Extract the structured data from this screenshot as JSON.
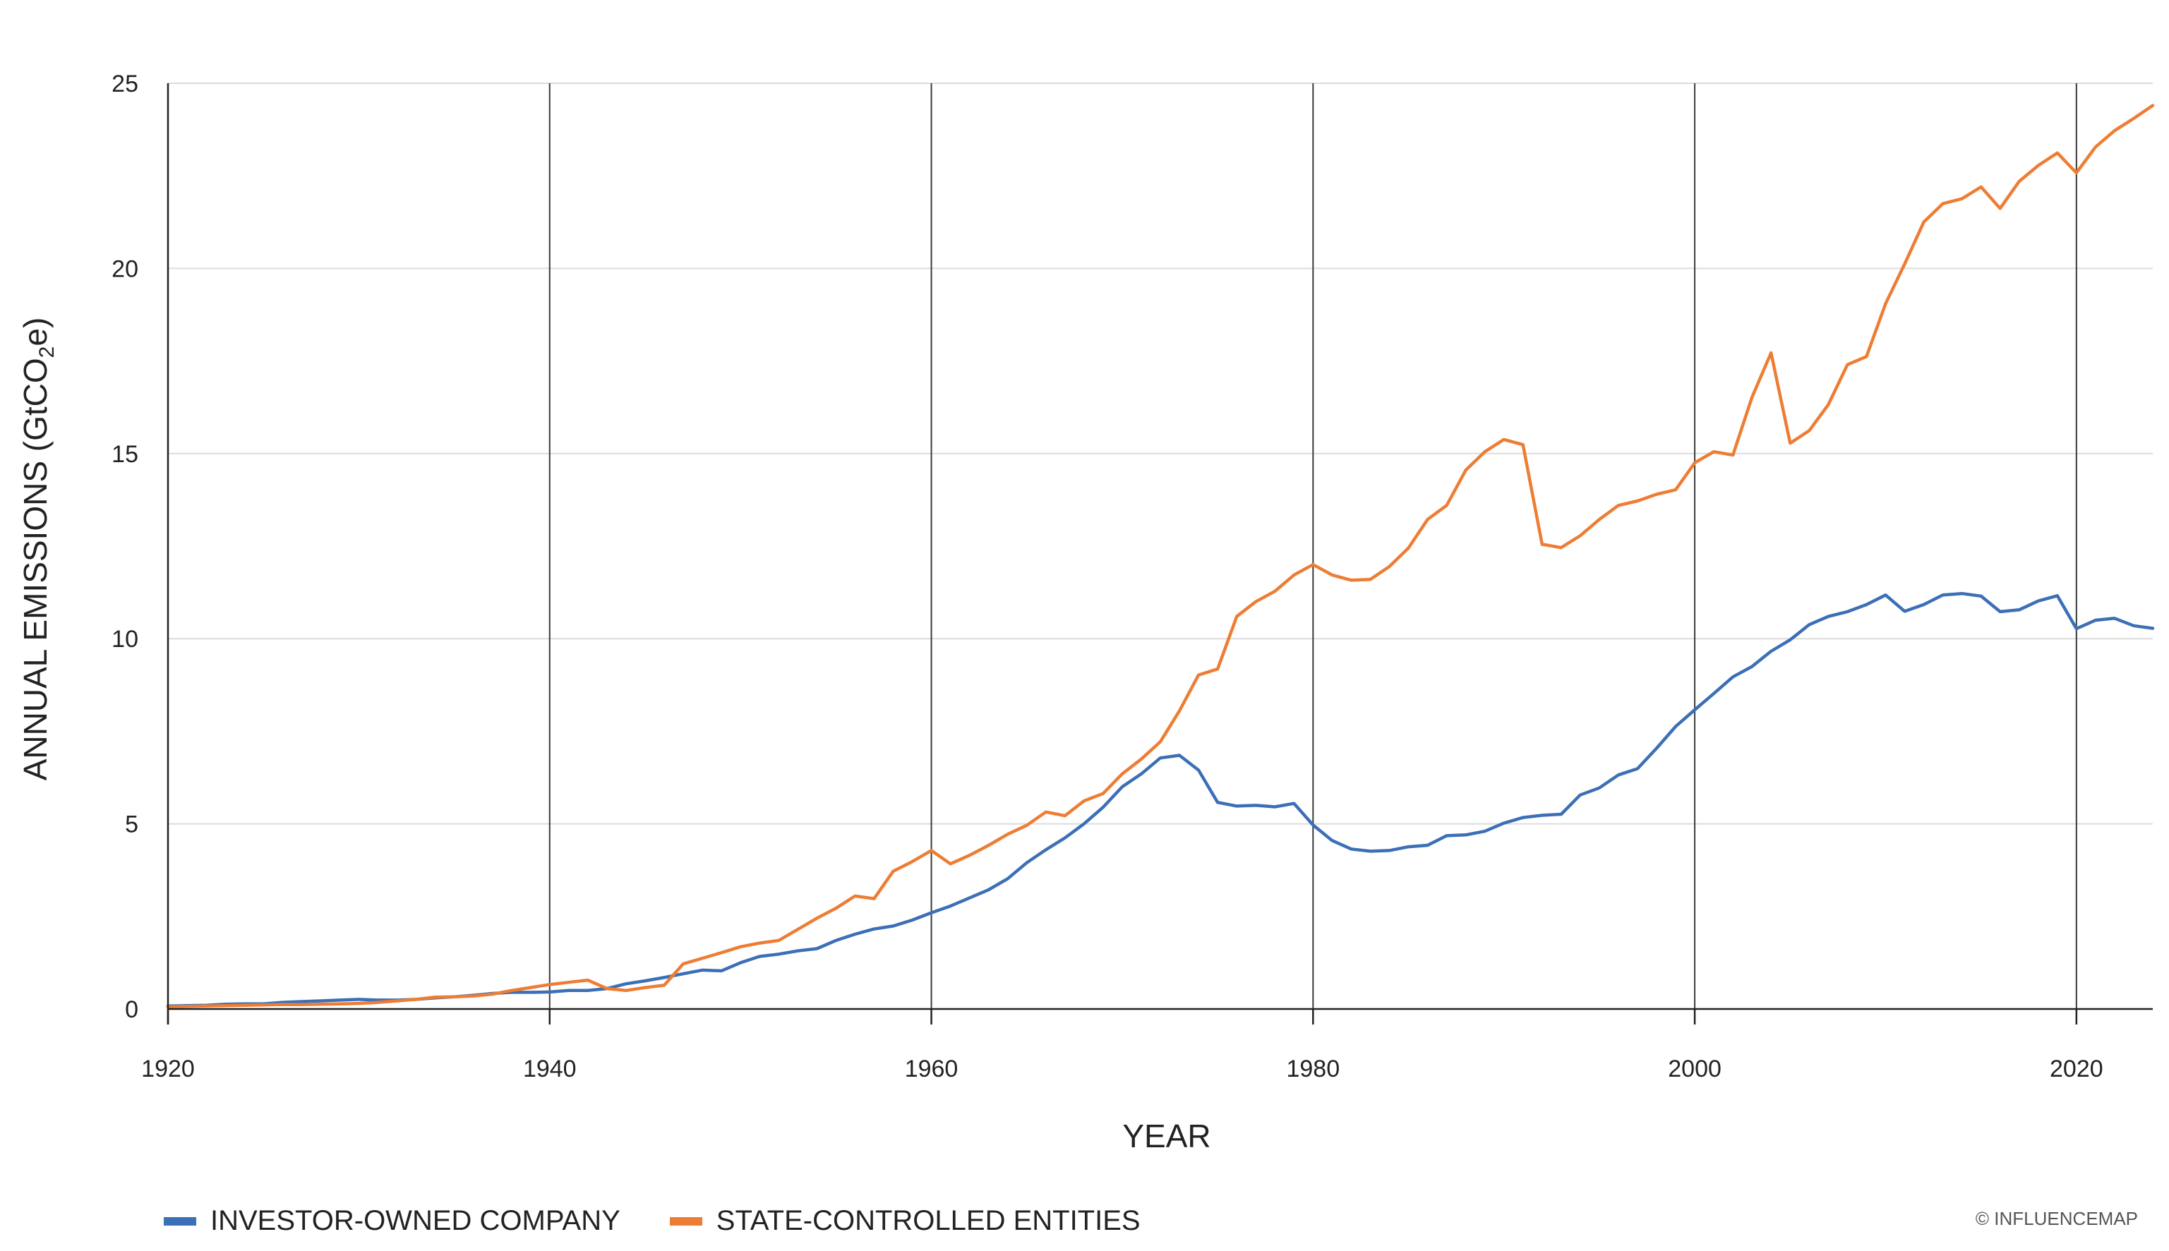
{
  "chart_data": {
    "type": "line",
    "title": "",
    "xlabel": "YEAR",
    "ylabel_prefix": "ANNUAL EMISSIONS (GtCO",
    "ylabel_sub": "2",
    "ylabel_suffix": "e)",
    "xlim": [
      1920,
      2024
    ],
    "ylim": [
      0,
      25
    ],
    "x_ticks": [
      1920,
      1940,
      1960,
      1980,
      2000,
      2020
    ],
    "y_ticks": [
      0,
      5,
      10,
      15,
      20,
      25
    ],
    "grid": "horizontal light gray, vertical dark at x ticks",
    "legend_position": "bottom-left",
    "series": [
      {
        "name": "INVESTOR-OWNED COMPANY",
        "color": "#3b6fb6",
        "x": [
          1920,
          1921,
          1922,
          1923,
          1924,
          1925,
          1926,
          1927,
          1928,
          1929,
          1930,
          1931,
          1932,
          1933,
          1934,
          1935,
          1936,
          1937,
          1938,
          1939,
          1940,
          1941,
          1942,
          1943,
          1944,
          1945,
          1946,
          1947,
          1948,
          1949,
          1950,
          1951,
          1952,
          1953,
          1954,
          1955,
          1956,
          1957,
          1958,
          1959,
          1960,
          1961,
          1962,
          1963,
          1964,
          1965,
          1966,
          1967,
          1968,
          1969,
          1970,
          1971,
          1972,
          1973,
          1974,
          1975,
          1976,
          1977,
          1978,
          1979,
          1980,
          1981,
          1982,
          1983,
          1984,
          1985,
          1986,
          1987,
          1988,
          1989,
          1990,
          1991,
          1992,
          1993,
          1994,
          1995,
          1996,
          1997,
          1998,
          1999,
          2000,
          2001,
          2002,
          2003,
          2004,
          2005,
          2006,
          2007,
          2008,
          2009,
          2010,
          2011,
          2012,
          2013,
          2014,
          2015,
          2016,
          2017,
          2018,
          2019,
          2020,
          2021,
          2022,
          2023,
          2024
        ],
        "values": [
          0.08,
          0.09,
          0.1,
          0.13,
          0.14,
          0.14,
          0.18,
          0.2,
          0.22,
          0.24,
          0.26,
          0.24,
          0.24,
          0.26,
          0.3,
          0.33,
          0.37,
          0.42,
          0.45,
          0.45,
          0.46,
          0.5,
          0.5,
          0.55,
          0.68,
          0.76,
          0.85,
          0.95,
          1.05,
          1.03,
          1.25,
          1.42,
          1.48,
          1.57,
          1.63,
          1.85,
          2.02,
          2.16,
          2.24,
          2.4,
          2.6,
          2.78,
          3.0,
          3.22,
          3.52,
          3.95,
          4.3,
          4.62,
          5.0,
          5.45,
          6.0,
          6.35,
          6.78,
          6.85,
          6.45,
          5.58,
          5.48,
          5.5,
          5.46,
          5.55,
          4.97,
          4.55,
          4.32,
          4.26,
          4.28,
          4.38,
          4.42,
          4.68,
          4.7,
          4.8,
          5.02,
          5.17,
          5.23,
          5.26,
          5.78,
          5.97,
          6.32,
          6.49,
          7.04,
          7.63,
          8.08,
          8.52,
          8.97,
          9.25,
          9.66,
          9.97,
          10.38,
          10.6,
          10.73,
          10.92,
          11.18,
          10.74,
          10.92,
          11.18,
          11.22,
          11.15,
          10.73,
          10.78,
          11.02,
          11.16,
          10.27,
          10.5,
          10.55,
          10.35,
          10.28
        ]
      },
      {
        "name": "STATE-CONTROLLED ENTITIES",
        "color": "#ee7d34",
        "x": [
          1920,
          1921,
          1922,
          1923,
          1924,
          1925,
          1926,
          1927,
          1928,
          1929,
          1930,
          1931,
          1932,
          1933,
          1934,
          1935,
          1936,
          1937,
          1938,
          1939,
          1940,
          1941,
          1942,
          1943,
          1944,
          1945,
          1946,
          1947,
          1948,
          1949,
          1950,
          1951,
          1952,
          1953,
          1954,
          1955,
          1956,
          1957,
          1958,
          1959,
          1960,
          1961,
          1962,
          1963,
          1964,
          1965,
          1966,
          1967,
          1968,
          1969,
          1970,
          1971,
          1972,
          1973,
          1974,
          1975,
          1976,
          1977,
          1978,
          1979,
          1980,
          1981,
          1982,
          1983,
          1984,
          1985,
          1986,
          1987,
          1988,
          1989,
          1990,
          1991,
          1992,
          1993,
          1994,
          1995,
          1996,
          1997,
          1998,
          1999,
          2000,
          2001,
          2002,
          2003,
          2004,
          2005,
          2006,
          2007,
          2008,
          2009,
          2010,
          2011,
          2012,
          2013,
          2014,
          2015,
          2016,
          2017,
          2018,
          2019,
          2020,
          2021,
          2022,
          2023,
          2024
        ],
        "values": [
          0.06,
          0.07,
          0.08,
          0.09,
          0.1,
          0.11,
          0.12,
          0.12,
          0.13,
          0.14,
          0.15,
          0.18,
          0.22,
          0.26,
          0.32,
          0.33,
          0.35,
          0.4,
          0.5,
          0.58,
          0.66,
          0.72,
          0.78,
          0.55,
          0.5,
          0.58,
          0.64,
          1.22,
          1.37,
          1.52,
          1.68,
          1.78,
          1.85,
          2.15,
          2.45,
          2.72,
          3.05,
          2.98,
          3.72,
          3.98,
          4.28,
          3.92,
          4.15,
          4.42,
          4.72,
          4.96,
          5.32,
          5.22,
          5.62,
          5.82,
          6.35,
          6.75,
          7.22,
          8.05,
          9.02,
          9.18,
          10.6,
          11.0,
          11.28,
          11.72,
          12.0,
          11.72,
          11.58,
          11.6,
          11.95,
          12.45,
          13.22,
          13.6,
          14.55,
          15.05,
          15.38,
          15.24,
          12.55,
          12.46,
          12.78,
          13.22,
          13.6,
          13.72,
          13.9,
          14.02,
          14.75,
          15.05,
          14.96,
          16.52,
          17.72,
          15.28,
          15.62,
          16.32,
          17.4,
          17.62,
          19.05,
          20.12,
          21.25,
          21.75,
          21.88,
          22.2,
          21.62,
          22.35,
          22.78,
          23.12,
          22.58,
          23.28,
          23.72,
          24.05,
          24.4
        ]
      }
    ]
  },
  "credit": "© INFLUENCEMAP"
}
